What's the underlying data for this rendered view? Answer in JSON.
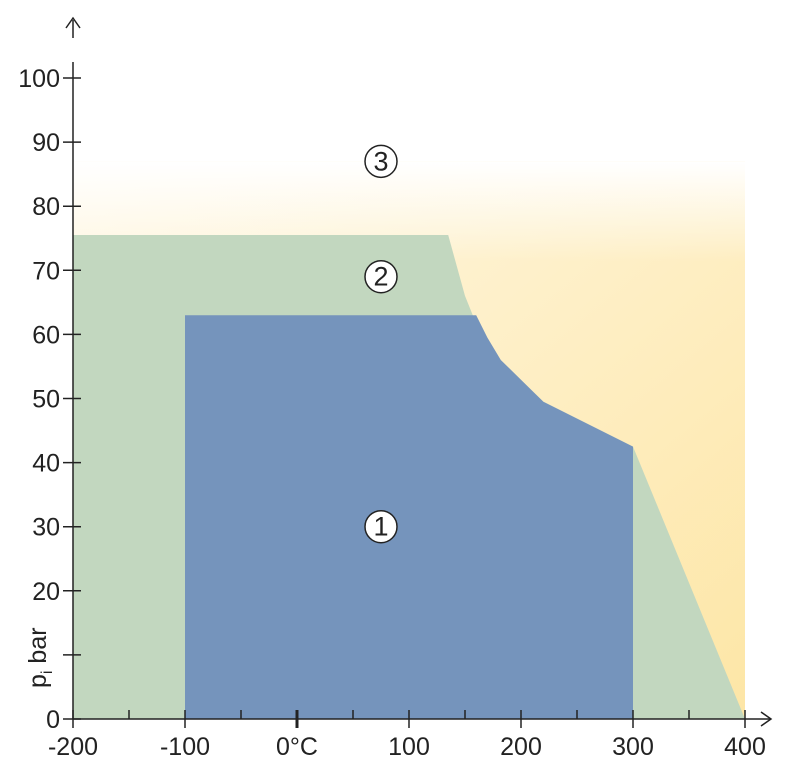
{
  "chart_data": {
    "type": "area",
    "title": "",
    "xlabel": "",
    "ylabel": "p",
    "ylabel_subscript": "i",
    "ylabel_unit": "bar",
    "xlim": [
      -200,
      400
    ],
    "ylim": [
      0,
      100
    ],
    "x_ticks": [
      {
        "value": -200,
        "label": "-200"
      },
      {
        "value": -100,
        "label": "-100"
      },
      {
        "value": 0,
        "label": "0°C"
      },
      {
        "value": 100,
        "label": "100"
      },
      {
        "value": 200,
        "label": "200"
      },
      {
        "value": 300,
        "label": "300"
      },
      {
        "value": 400,
        "label": "400"
      }
    ],
    "x_minor_ticks": [
      -150,
      -50,
      50,
      150,
      250,
      350
    ],
    "y_ticks": [
      {
        "value": 0,
        "label": "0"
      },
      {
        "value": 10,
        "label": ""
      },
      {
        "value": 20,
        "label": "20"
      },
      {
        "value": 30,
        "label": "30"
      },
      {
        "value": 40,
        "label": "40"
      },
      {
        "value": 50,
        "label": "50"
      },
      {
        "value": 60,
        "label": "60"
      },
      {
        "value": 70,
        "label": "70"
      },
      {
        "value": 80,
        "label": "80"
      },
      {
        "value": 90,
        "label": "90"
      },
      {
        "value": 100,
        "label": "100"
      }
    ],
    "grid": false,
    "regions": [
      {
        "id": "3",
        "label": "3",
        "label_at": [
          75,
          87
        ],
        "fill": "gradient",
        "colors": [
          "#fff8e6",
          "#fde6a6"
        ],
        "points": [
          [
            -200,
            87
          ],
          [
            400,
            87
          ],
          [
            400,
            0
          ],
          [
            -200,
            0
          ]
        ]
      },
      {
        "id": "2",
        "label": "2",
        "label_at": [
          75,
          69
        ],
        "fill": "#c2d7bf",
        "points": [
          [
            -200,
            0
          ],
          [
            -200,
            75.5
          ],
          [
            135,
            75.5
          ],
          [
            150,
            66
          ],
          [
            165,
            59.5
          ],
          [
            180,
            56
          ],
          [
            220,
            49.5
          ],
          [
            300,
            42.5
          ],
          [
            400,
            0
          ]
        ]
      },
      {
        "id": "1",
        "label": "1",
        "label_at": [
          75,
          30
        ],
        "fill": "#7594bc",
        "points": [
          [
            -100,
            0
          ],
          [
            -100,
            63
          ],
          [
            160,
            63
          ],
          [
            170,
            59.5
          ],
          [
            182,
            56
          ],
          [
            220,
            49.5
          ],
          [
            300,
            42.5
          ],
          [
            300,
            0
          ]
        ]
      }
    ],
    "colors": {
      "axis": "#222222",
      "region_1": "#7594bc",
      "region_2": "#c2d7bf",
      "region_3_top": "#fff8e6",
      "region_3_bottom": "#fde6a6"
    }
  }
}
